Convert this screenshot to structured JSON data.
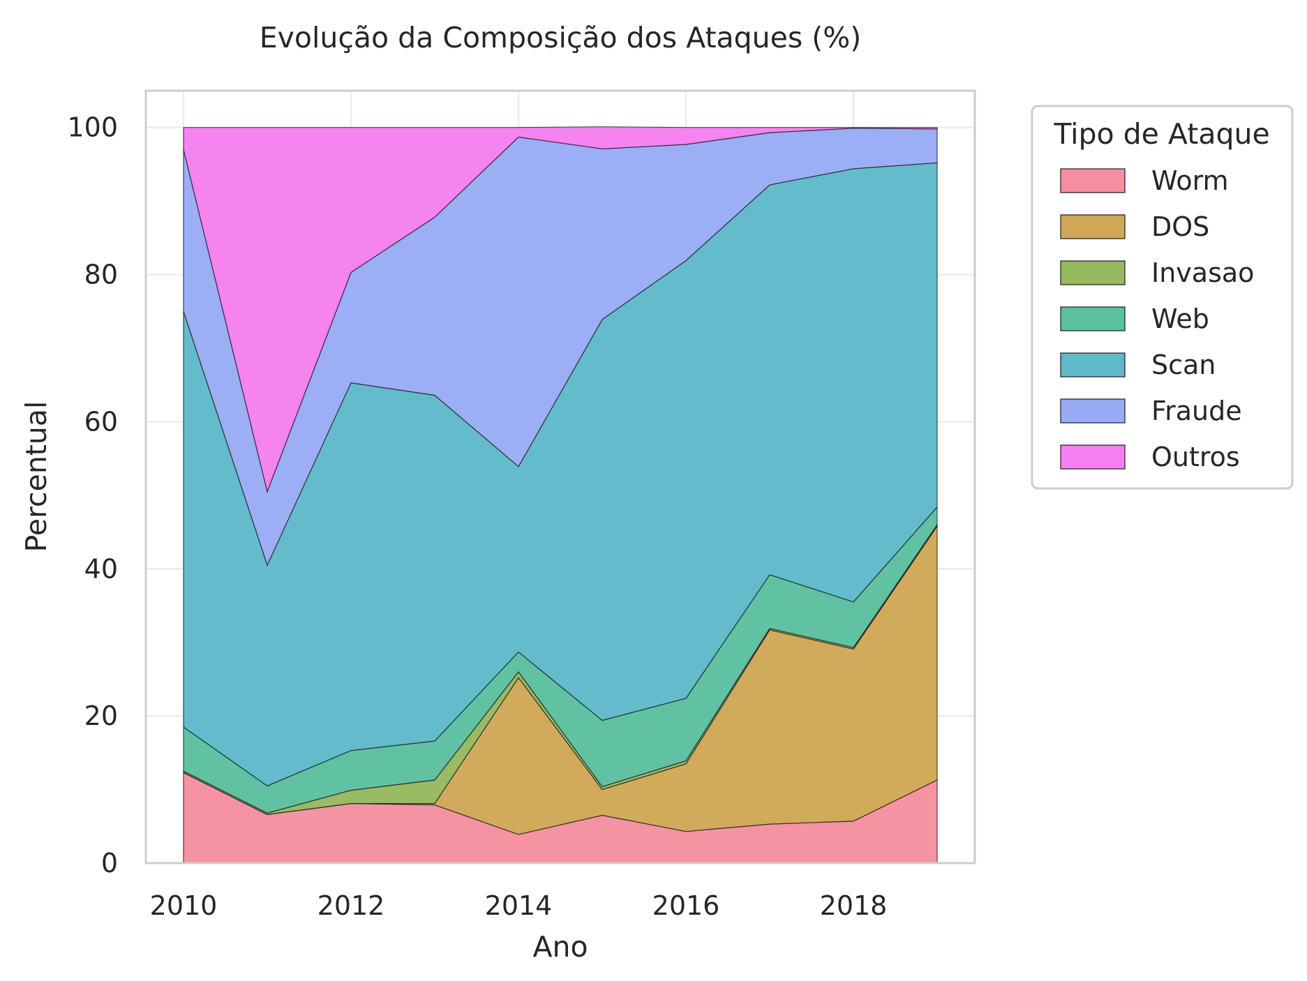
{
  "chart_data": {
    "type": "area",
    "stacked": true,
    "title": "Evolução da Composição dos Ataques (%)",
    "xlabel": "Ano",
    "ylabel": "Percentual",
    "x": [
      2010,
      2011,
      2012,
      2013,
      2014,
      2015,
      2016,
      2017,
      2018,
      2019
    ],
    "xlim": [
      2009.55,
      2019.45
    ],
    "ylim": [
      0,
      105
    ],
    "xticks": [
      "2010",
      "2012",
      "2014",
      "2016",
      "2018"
    ],
    "yticks": [
      "0",
      "20",
      "40",
      "60",
      "80",
      "100"
    ],
    "grid": true,
    "legend": {
      "title": "Tipo de Ataque",
      "placement": "outside-right"
    },
    "series": [
      {
        "name": "Worm",
        "color": "#f68fa0",
        "values": [
          12.3,
          6.6,
          8.1,
          7.9,
          3.9,
          6.5,
          4.3,
          5.3,
          5.7,
          11.3
        ]
      },
      {
        "name": "DOS",
        "color": "#cfa756",
        "values": [
          0.0,
          0.0,
          0.0,
          0.2,
          21.3,
          3.5,
          9.2,
          26.4,
          23.4,
          34.5
        ]
      },
      {
        "name": "Invasao",
        "color": "#95b95e",
        "values": [
          0.2,
          0.2,
          1.8,
          3.2,
          0.8,
          0.4,
          0.4,
          0.2,
          0.2,
          0.2
        ]
      },
      {
        "name": "Web",
        "color": "#5bc0a0",
        "values": [
          6.0,
          3.7,
          5.4,
          5.3,
          2.7,
          9.0,
          8.5,
          7.3,
          6.2,
          2.4
        ]
      },
      {
        "name": "Scan",
        "color": "#5fb9c9",
        "values": [
          56.5,
          30.0,
          50.0,
          47.0,
          25.2,
          54.5,
          59.5,
          53.0,
          58.9,
          46.8
        ]
      },
      {
        "name": "Fraude",
        "color": "#99abf5",
        "values": [
          22.0,
          10.0,
          15.0,
          24.2,
          44.8,
          23.2,
          15.8,
          7.1,
          5.5,
          4.6
        ]
      },
      {
        "name": "Outros",
        "color": "#f57ff0",
        "values": [
          3.0,
          49.5,
          19.7,
          12.2,
          1.3,
          3.0,
          2.3,
          0.7,
          0.1,
          0.2
        ]
      }
    ]
  }
}
